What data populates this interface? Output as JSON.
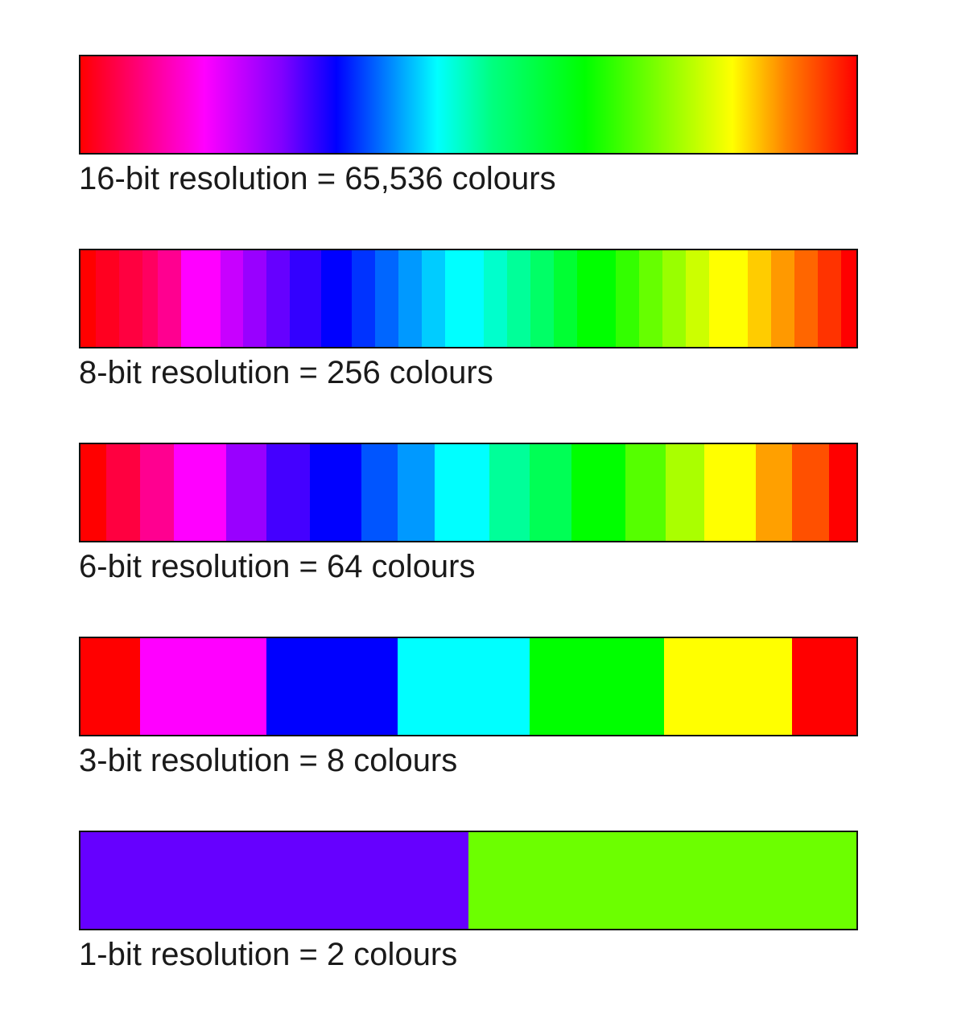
{
  "panels": [
    {
      "id": "16",
      "caption": "16-bit resolution = 65,536 colours",
      "type": "gradient",
      "bands": []
    },
    {
      "id": "8",
      "caption": "8-bit resolution = 256 colours",
      "type": "bands",
      "bands": [
        {
          "color": "#ff0000",
          "w": 2
        },
        {
          "color": "#ff0020",
          "w": 3
        },
        {
          "color": "#ff0040",
          "w": 3
        },
        {
          "color": "#ff0060",
          "w": 2
        },
        {
          "color": "#ff0090",
          "w": 3
        },
        {
          "color": "#ff00ff",
          "w": 5
        },
        {
          "color": "#c800ff",
          "w": 3
        },
        {
          "color": "#9900ff",
          "w": 3
        },
        {
          "color": "#6600ff",
          "w": 3
        },
        {
          "color": "#3300ff",
          "w": 4
        },
        {
          "color": "#0000ff",
          "w": 4
        },
        {
          "color": "#0033ff",
          "w": 3
        },
        {
          "color": "#0066ff",
          "w": 3
        },
        {
          "color": "#0099ff",
          "w": 3
        },
        {
          "color": "#00ccff",
          "w": 3
        },
        {
          "color": "#00ffff",
          "w": 5
        },
        {
          "color": "#00ffcc",
          "w": 3
        },
        {
          "color": "#00ff99",
          "w": 3
        },
        {
          "color": "#00ff66",
          "w": 3
        },
        {
          "color": "#00ff33",
          "w": 3
        },
        {
          "color": "#00ff00",
          "w": 5
        },
        {
          "color": "#33ff00",
          "w": 3
        },
        {
          "color": "#66ff00",
          "w": 3
        },
        {
          "color": "#99ff00",
          "w": 3
        },
        {
          "color": "#ccff00",
          "w": 3
        },
        {
          "color": "#ffff00",
          "w": 5
        },
        {
          "color": "#ffcc00",
          "w": 3
        },
        {
          "color": "#ff9900",
          "w": 3
        },
        {
          "color": "#ff6600",
          "w": 3
        },
        {
          "color": "#ff3300",
          "w": 3
        },
        {
          "color": "#ff0000",
          "w": 2
        }
      ]
    },
    {
      "id": "6",
      "caption": "6-bit resolution = 64 colours",
      "type": "bands",
      "bands": [
        {
          "color": "#ff0000",
          "w": 32
        },
        {
          "color": "#ff0040",
          "w": 42
        },
        {
          "color": "#ff0090",
          "w": 42
        },
        {
          "color": "#ff00ff",
          "w": 66
        },
        {
          "color": "#9900ff",
          "w": 50
        },
        {
          "color": "#4400ff",
          "w": 54
        },
        {
          "color": "#0000ff",
          "w": 64
        },
        {
          "color": "#0055ff",
          "w": 46
        },
        {
          "color": "#0099ff",
          "w": 46
        },
        {
          "color": "#00ffff",
          "w": 68
        },
        {
          "color": "#00ff99",
          "w": 50
        },
        {
          "color": "#00ff55",
          "w": 52
        },
        {
          "color": "#00ff00",
          "w": 68
        },
        {
          "color": "#55ff00",
          "w": 50
        },
        {
          "color": "#aaff00",
          "w": 48
        },
        {
          "color": "#ffff00",
          "w": 64
        },
        {
          "color": "#ffa000",
          "w": 46
        },
        {
          "color": "#ff5000",
          "w": 46
        },
        {
          "color": "#ff0000",
          "w": 34
        }
      ]
    },
    {
      "id": "3",
      "caption": "3-bit resolution = 8 colours",
      "type": "bands",
      "bands": [
        {
          "color": "#ff0000",
          "w": 74
        },
        {
          "color": "#ff00ff",
          "w": 158
        },
        {
          "color": "#0000ff",
          "w": 164
        },
        {
          "color": "#00ffff",
          "w": 164
        },
        {
          "color": "#00ff00",
          "w": 168
        },
        {
          "color": "#ffff00",
          "w": 160
        },
        {
          "color": "#ff0000",
          "w": 80
        }
      ]
    },
    {
      "id": "1",
      "caption": "1-bit resolution = 2 colours",
      "type": "bands",
      "bands": [
        {
          "color": "#6600ff",
          "w": 484
        },
        {
          "color": "#6cff00",
          "w": 484
        }
      ]
    }
  ]
}
